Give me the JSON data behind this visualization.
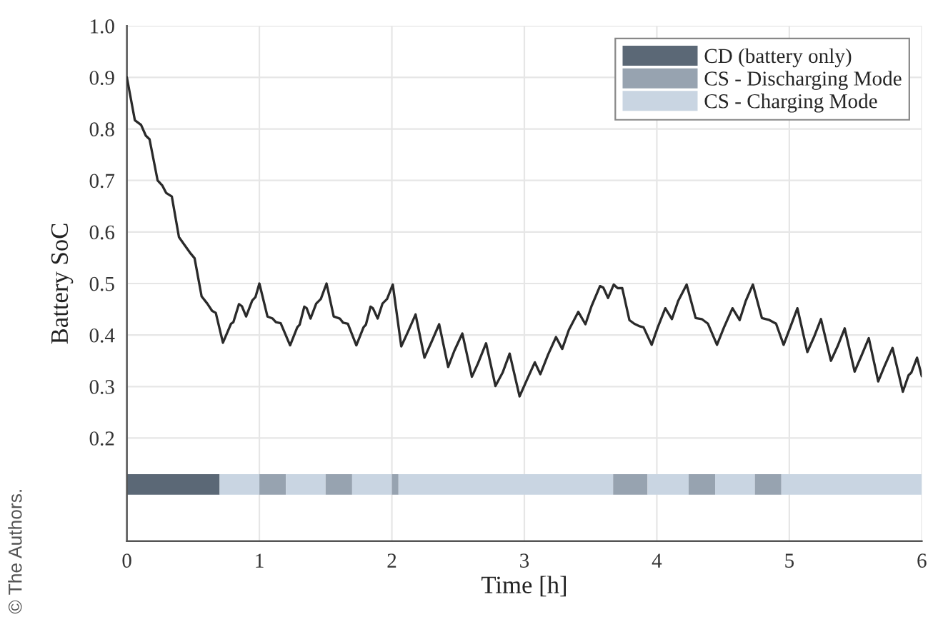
{
  "chart_data": {
    "type": "line",
    "xlabel": "Time [h]",
    "ylabel": "Battery SoC",
    "series": [
      {
        "color": "#2a2a2a",
        "x": [
          0,
          0.06,
          0.107,
          0.143,
          0.171,
          0.232,
          0.268,
          0.296,
          0.339,
          0.393,
          0.429,
          0.482,
          0.511,
          0.564,
          0.607,
          0.643,
          0.671,
          0.725,
          0.786,
          0.804,
          0.846,
          0.868,
          0.9,
          0.946,
          0.971,
          1.0,
          1.061,
          1.1,
          1.125,
          1.161,
          1.232,
          1.286,
          1.304,
          1.339,
          1.357,
          1.386,
          1.429,
          1.464,
          1.507,
          1.561,
          1.607,
          1.632,
          1.668,
          1.732,
          1.786,
          1.804,
          1.839,
          1.857,
          1.893,
          1.929,
          1.964,
          2.007,
          2.071,
          2.121,
          2.179,
          2.246,
          2.3,
          2.357,
          2.425,
          2.471,
          2.532,
          2.604,
          2.65,
          2.711,
          2.782,
          2.836,
          2.889,
          2.964,
          3.014,
          3.079,
          3.121,
          3.179,
          3.239,
          3.286,
          3.336,
          3.407,
          3.461,
          3.507,
          3.571,
          3.596,
          3.632,
          3.675,
          3.704,
          3.739,
          3.793,
          3.829,
          3.871,
          3.9,
          3.961,
          4.007,
          4.064,
          4.114,
          4.161,
          4.225,
          4.293,
          4.339,
          4.386,
          4.454,
          4.507,
          4.571,
          4.625,
          4.671,
          4.725,
          4.793,
          4.85,
          4.9,
          4.957,
          5.007,
          5.061,
          5.136,
          5.186,
          5.239,
          5.314,
          5.364,
          5.418,
          5.493,
          5.543,
          5.6,
          5.671,
          5.721,
          5.779,
          5.857,
          5.9,
          5.921,
          5.964,
          6.0
        ],
        "values": [
          0.9,
          0.817,
          0.808,
          0.787,
          0.78,
          0.7,
          0.69,
          0.676,
          0.669,
          0.59,
          0.577,
          0.558,
          0.549,
          0.475,
          0.461,
          0.447,
          0.443,
          0.385,
          0.422,
          0.425,
          0.46,
          0.456,
          0.436,
          0.467,
          0.474,
          0.5,
          0.436,
          0.432,
          0.425,
          0.423,
          0.38,
          0.415,
          0.42,
          0.455,
          0.452,
          0.432,
          0.461,
          0.47,
          0.5,
          0.436,
          0.432,
          0.424,
          0.422,
          0.38,
          0.415,
          0.42,
          0.455,
          0.452,
          0.432,
          0.461,
          0.47,
          0.498,
          0.378,
          0.406,
          0.44,
          0.356,
          0.387,
          0.421,
          0.338,
          0.369,
          0.403,
          0.319,
          0.345,
          0.384,
          0.301,
          0.327,
          0.364,
          0.281,
          0.31,
          0.347,
          0.324,
          0.362,
          0.396,
          0.373,
          0.41,
          0.445,
          0.421,
          0.456,
          0.495,
          0.492,
          0.472,
          0.498,
          0.491,
          0.491,
          0.429,
          0.422,
          0.417,
          0.415,
          0.381,
          0.415,
          0.452,
          0.431,
          0.466,
          0.498,
          0.433,
          0.431,
          0.422,
          0.381,
          0.415,
          0.452,
          0.429,
          0.466,
          0.498,
          0.433,
          0.429,
          0.422,
          0.381,
          0.415,
          0.452,
          0.367,
          0.396,
          0.431,
          0.35,
          0.378,
          0.413,
          0.329,
          0.359,
          0.394,
          0.31,
          0.341,
          0.375,
          0.29,
          0.322,
          0.327,
          0.356,
          0.32
        ]
      }
    ],
    "bands": [
      {
        "axis": "x",
        "from": 0,
        "to": 0.7,
        "color": "#5b6876",
        "label": "CD (battery only)"
      },
      {
        "axis": "x",
        "from": 0.7,
        "to": 1.0,
        "color": "#c9d5e2"
      },
      {
        "axis": "x",
        "from": 1.0,
        "to": 1.2,
        "color": "#97a3b0",
        "label": "CS - Discharging Mode"
      },
      {
        "axis": "x",
        "from": 1.2,
        "to": 1.5,
        "color": "#c9d5e2",
        "label": "CS - Charging Mode"
      },
      {
        "axis": "x",
        "from": 1.5,
        "to": 1.7,
        "color": "#97a3b0"
      },
      {
        "axis": "x",
        "from": 1.7,
        "to": 2.0,
        "color": "#c9d5e2"
      },
      {
        "axis": "x",
        "from": 2.0,
        "to": 2.05,
        "color": "#97a3b0"
      },
      {
        "axis": "x",
        "from": 2.05,
        "to": 3.67,
        "color": "#c9d5e2"
      },
      {
        "axis": "x",
        "from": 3.67,
        "to": 3.93,
        "color": "#97a3b0"
      },
      {
        "axis": "x",
        "from": 3.93,
        "to": 4.24,
        "color": "#c9d5e2"
      },
      {
        "axis": "x",
        "from": 4.24,
        "to": 4.44,
        "color": "#97a3b0"
      },
      {
        "axis": "x",
        "from": 4.44,
        "to": 4.74,
        "color": "#c9d5e2"
      },
      {
        "axis": "x",
        "from": 4.74,
        "to": 4.94,
        "color": "#97a3b0"
      },
      {
        "axis": "x",
        "from": 4.94,
        "to": 6.0,
        "color": "#c9d5e2"
      }
    ],
    "xlim": [
      0,
      6
    ],
    "xticks": [
      0,
      1,
      2,
      3,
      4,
      5,
      6
    ],
    "ylim": [
      0,
      1
    ],
    "yticks": [
      0.2,
      0.3,
      0.4,
      0.5,
      0.6,
      0.7,
      0.8,
      0.9,
      {
        "value": 1,
        "label": "1.0"
      }
    ],
    "grid": true,
    "legend": "top right",
    "annotations": [
      "© The Authors."
    ]
  }
}
